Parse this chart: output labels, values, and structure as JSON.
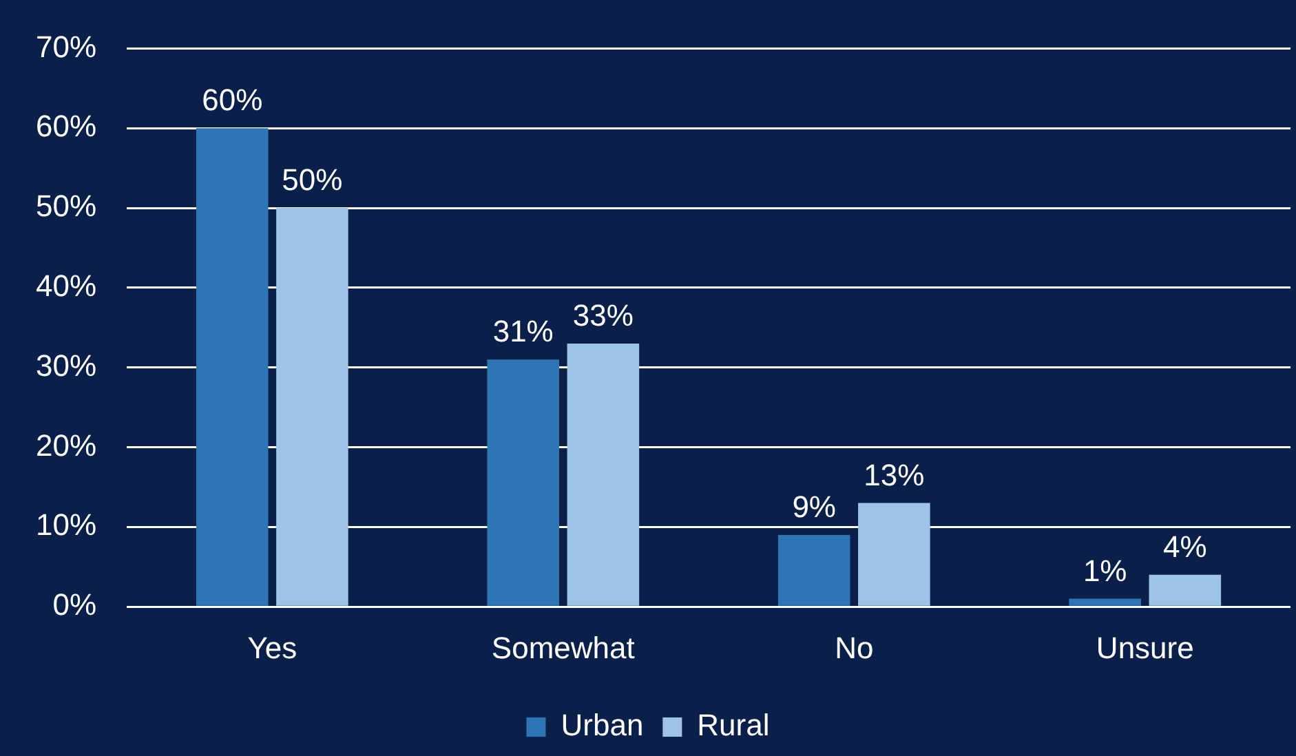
{
  "chart_data": {
    "type": "bar",
    "categories": [
      "Yes",
      "Somewhat",
      "No",
      "Unsure"
    ],
    "series": [
      {
        "name": "Urban",
        "color": "#2e75b6",
        "values": [
          60,
          31,
          9,
          1
        ],
        "value_labels": [
          "60%",
          "31%",
          "9%",
          "1%"
        ]
      },
      {
        "name": "Rural",
        "color": "#9dc3e6",
        "values": [
          50,
          33,
          13,
          4
        ],
        "value_labels": [
          "50%",
          "33%",
          "13%",
          "4%"
        ]
      }
    ],
    "ylim": [
      0,
      70
    ],
    "yticks": [
      {
        "value": 0,
        "label": "0%"
      },
      {
        "value": 10,
        "label": "10%"
      },
      {
        "value": 20,
        "label": "20%"
      },
      {
        "value": 30,
        "label": "30%"
      },
      {
        "value": 40,
        "label": "40%"
      },
      {
        "value": 50,
        "label": "50%"
      },
      {
        "value": 60,
        "label": "60%"
      },
      {
        "value": 70,
        "label": "70%"
      }
    ],
    "grid": "y",
    "legend": "bottom"
  }
}
